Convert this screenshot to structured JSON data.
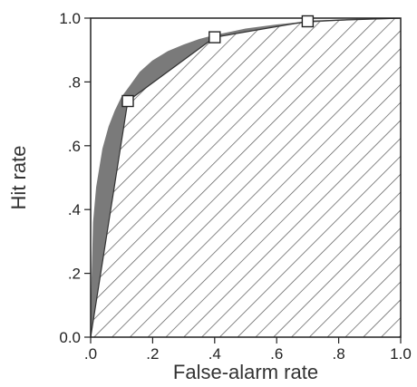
{
  "chart_data": {
    "type": "line",
    "xlabel": "False-alarm rate",
    "ylabel": "Hit rate",
    "xlim": [
      0,
      1
    ],
    "ylim": [
      0,
      1
    ],
    "grid": false,
    "x_ticks": [
      ".0",
      ".2",
      ".4",
      ".6",
      ".8",
      "1.0"
    ],
    "x_tick_values": [
      0,
      0.2,
      0.4,
      0.6,
      0.8,
      1.0
    ],
    "y_ticks": [
      "0.0",
      ".2",
      ".4",
      ".6",
      ".8",
      "1.0"
    ],
    "y_tick_values": [
      0,
      0.2,
      0.4,
      0.6,
      0.8,
      1.0
    ],
    "series": [
      {
        "kind": "smooth-roc-curve",
        "x": [
          0,
          0.01,
          0.02,
          0.04,
          0.06,
          0.08,
          0.1,
          0.13,
          0.16,
          0.2,
          0.25,
          0.3,
          0.35,
          0.4,
          0.5,
          0.6,
          0.7,
          0.8,
          0.9,
          1.0
        ],
        "y": [
          0,
          0.36,
          0.47,
          0.59,
          0.66,
          0.71,
          0.75,
          0.79,
          0.83,
          0.865,
          0.895,
          0.915,
          0.932,
          0.945,
          0.965,
          0.978,
          0.988,
          0.994,
          0.998,
          1.0
        ]
      },
      {
        "kind": "piecewise-linear-roc",
        "x": [
          0,
          0.12,
          0.4,
          0.7,
          1.0
        ],
        "y": [
          0,
          0.74,
          0.94,
          0.99,
          1.0
        ]
      }
    ],
    "points": {
      "marker": "open-square",
      "x": [
        0.12,
        0.4,
        0.7
      ],
      "y": [
        0.74,
        0.94,
        0.99
      ]
    },
    "colors": {
      "fill_between": "#7a7a7a",
      "hatch": "#555555",
      "frame": "#222222"
    }
  }
}
